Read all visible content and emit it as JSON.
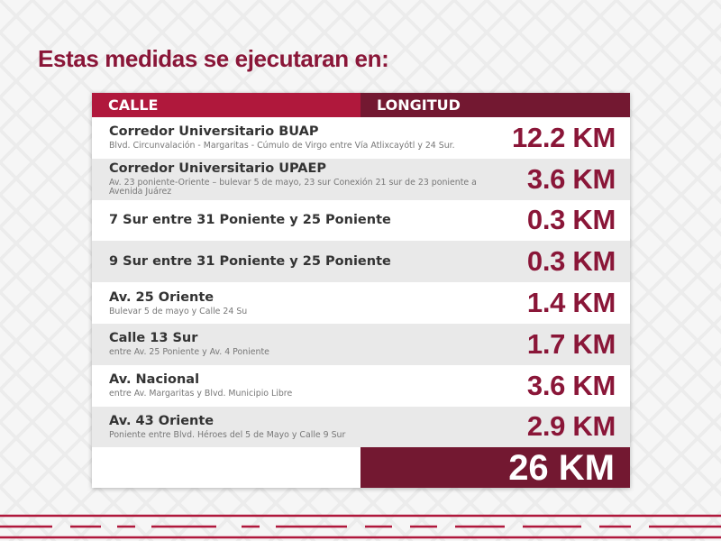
{
  "heading": "Estas medidas se ejecutaran en:",
  "table": {
    "col_calle": "CALLE",
    "col_longitud": "LONGITUD",
    "rows": [
      {
        "name": "Corredor Universitario BUAP",
        "desc": "Blvd. Circunvalación - Margaritas - Cúmulo de Virgo entre Vía Atlixcayótl y 24 Sur.",
        "km": "12.2 KM"
      },
      {
        "name": "Corredor Universitario UPAEP",
        "desc": "Av. 23 poniente-Oriente – bulevar 5 de mayo, 23 sur Conexión 21 sur de 23 poniente a Avenida Juárez",
        "km": "3.6 KM"
      },
      {
        "name": "7 Sur entre 31 Poniente y 25 Poniente",
        "desc": "",
        "km": "0.3 KM"
      },
      {
        "name": "9 Sur entre 31 Poniente y 25 Poniente",
        "desc": "",
        "km": "0.3 KM"
      },
      {
        "name": "Av. 25 Oriente",
        "desc": "Bulevar 5 de mayo y Calle 24 Su",
        "km": "1.4 KM"
      },
      {
        "name": "Calle 13 Sur",
        "desc": "entre Av. 25 Poniente y Av. 4 Poniente",
        "km": "1.7 KM"
      },
      {
        "name": "Av. Nacional",
        "desc": "entre Av. Margaritas y Blvd. Municipio Libre",
        "km": "3.6 KM"
      },
      {
        "name": "Av. 43 Oriente",
        "desc": "Poniente entre Blvd. Héroes del 5 de Mayo y Calle 9 Sur",
        "km": "2.9 KM"
      }
    ],
    "total": "26 KM"
  },
  "colors": {
    "brand_red": "#b0183c",
    "brand_maroon": "#731831",
    "heading_text": "#8a1638"
  }
}
